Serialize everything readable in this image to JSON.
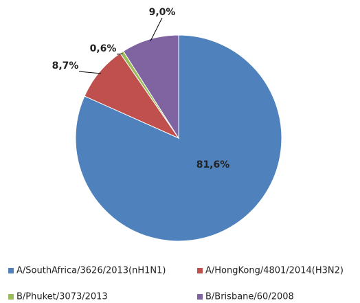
{
  "chart_data": {
    "type": "pie",
    "categories": [
      "A/SouthAfrica/3626/2013(nH1N1)",
      "A/HongKong/4801/2014(H3N2)",
      "B/Phuket/3073/2013",
      "B/Brisbane/60/2008"
    ],
    "values": [
      81.6,
      8.7,
      0.6,
      9.0
    ],
    "value_labels": [
      "81,6%",
      "8,7%",
      "0,6%",
      "9,0%"
    ],
    "colors": [
      "#4f81bd",
      "#c0504d",
      "#9bbb59",
      "#8064a2"
    ]
  }
}
